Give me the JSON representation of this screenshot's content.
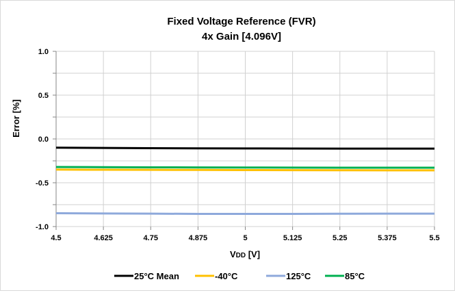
{
  "chart_data": {
    "type": "line",
    "title": "Fixed Voltage Reference (FVR)",
    "subtitle": "4x Gain [4.096V]",
    "xlabel": "VDD [V]",
    "xlabel_main": "V",
    "xlabel_sub": "DD",
    "xlabel_unit": " [V]",
    "ylabel": "Error [%]",
    "xlim": [
      4.5,
      5.5
    ],
    "ylim": [
      -1.0,
      1.0
    ],
    "x_ticks": [
      "4.5",
      "4.625",
      "4.75",
      "4.875",
      "5",
      "5.125",
      "5.25",
      "5.375",
      "5.5"
    ],
    "y_ticks": [
      "1.0",
      "0.5",
      "0.0",
      "-0.5",
      "-1.0"
    ],
    "grid": true,
    "legend_position": "bottom",
    "x": [
      4.5,
      4.625,
      4.75,
      4.875,
      5.0,
      5.125,
      5.25,
      5.375,
      5.5
    ],
    "series": [
      {
        "name": "25°C Mean",
        "color": "#000000",
        "values": [
          -0.1,
          -0.103,
          -0.105,
          -0.107,
          -0.108,
          -0.109,
          -0.11,
          -0.11,
          -0.11
        ]
      },
      {
        "name": "-40°C",
        "color": "#FFC000",
        "values": [
          -0.35,
          -0.352,
          -0.353,
          -0.354,
          -0.355,
          -0.356,
          -0.357,
          -0.358,
          -0.358
        ]
      },
      {
        "name": "125°C",
        "color": "#8EA9DB",
        "values": [
          -0.848,
          -0.851,
          -0.853,
          -0.855,
          -0.855,
          -0.855,
          -0.854,
          -0.853,
          -0.853
        ]
      },
      {
        "name": "85°C",
        "color": "#00B050",
        "values": [
          -0.32,
          -0.322,
          -0.324,
          -0.325,
          -0.326,
          -0.327,
          -0.328,
          -0.328,
          -0.328
        ]
      }
    ]
  }
}
